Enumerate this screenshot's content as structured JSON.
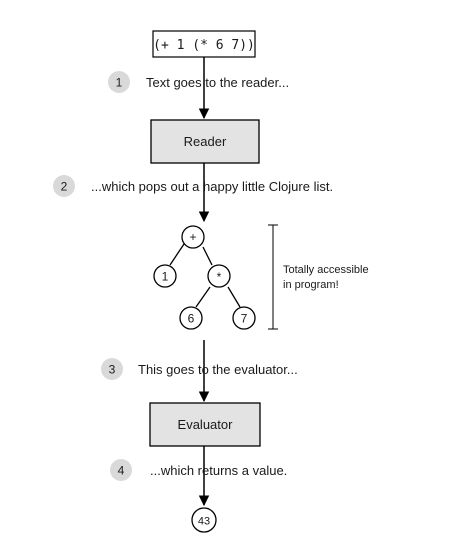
{
  "source_code": "(+ 1 (* 6 7))",
  "steps": [
    {
      "number": "1",
      "text": "Text goes to the reader..."
    },
    {
      "number": "2",
      "text": "...which pops out a happy little Clojure list."
    },
    {
      "number": "3",
      "text": "This goes to the evaluator..."
    },
    {
      "number": "4",
      "text": "...which returns a value."
    }
  ],
  "boxes": {
    "reader": "Reader",
    "evaluator": "Evaluator"
  },
  "tree": {
    "root": "+",
    "left_child": "1",
    "inner_op": "*",
    "inner_left": "6",
    "inner_right": "7"
  },
  "annotation": {
    "line1": "Totally accessible",
    "line2": "in program!"
  },
  "result": "43",
  "colors": {
    "box_fill": "#e3e3e3",
    "step_circle": "#d9d9d9",
    "stroke": "#000000",
    "text": "#1a1a1a"
  }
}
